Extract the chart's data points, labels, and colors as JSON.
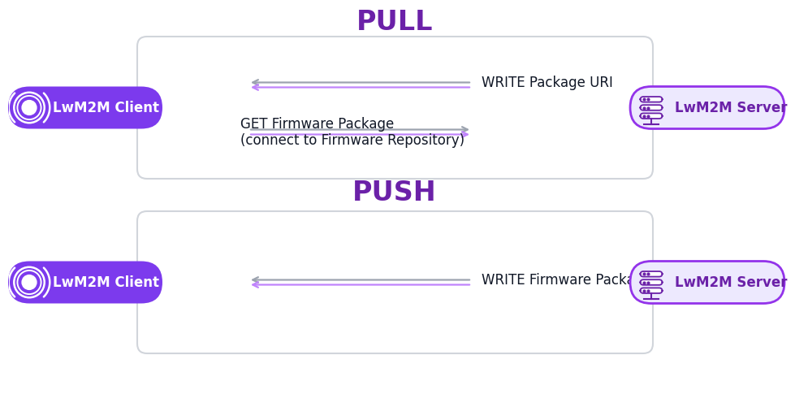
{
  "bg_color": "#ffffff",
  "purple_dark": "#6b21a8",
  "purple_badge": "#7c3aed",
  "purple_border": "#9333ea",
  "purple_light_fill": "#ede9fe",
  "purple_arrow": "#c084fc",
  "gray_arrow": "#9ca3af",
  "gray_border": "#d1d5db",
  "text_dark": "#111827",
  "text_purple": "#6b21a8",
  "pull_title": "PULL",
  "push_title": "PUSH",
  "client_label": "LwM2M Client",
  "server_label": "LwM2M Server",
  "pull_arrow1_label": "WRITE Package URI",
  "pull_arrow2_label1": "GET Firmware Package",
  "pull_arrow2_label2": "(connect to Firmware Repository)",
  "push_arrow_label": "WRITE Firmware Package",
  "title_fontsize": 24,
  "label_fontsize": 12,
  "badge_fontsize": 12
}
